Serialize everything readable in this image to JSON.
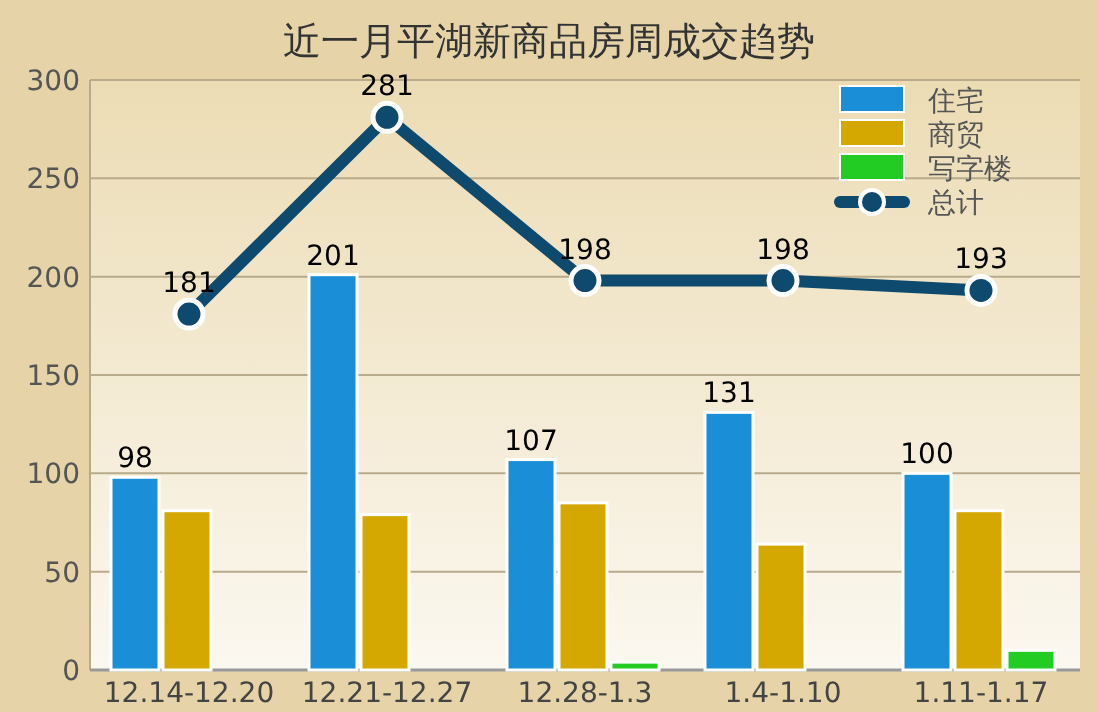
{
  "chart_data": {
    "type": "bar",
    "title": "近一月平湖新商品房周成交趋势",
    "categories": [
      "12.14-12.20",
      "12.21-12.27",
      "12.28-1.3",
      "1.4-1.10",
      "1.11-1.17"
    ],
    "series": [
      {
        "name": "住宅",
        "color": "#1a8fd8",
        "values": [
          98,
          201,
          107,
          131,
          100
        ],
        "value_labels": [
          "98",
          "201",
          "107",
          "131",
          "100"
        ]
      },
      {
        "name": "商贸",
        "color": "#d4a800",
        "values": [
          81,
          79,
          85,
          64,
          81
        ]
      },
      {
        "name": "写字楼",
        "color": "#22cc22",
        "values": [
          0,
          0,
          4,
          0,
          10
        ]
      },
      {
        "name": "总计",
        "type": "line",
        "color": "#0d4a6e",
        "marker": "circle",
        "values": [
          181,
          281,
          198,
          198,
          193
        ],
        "value_labels": [
          "181",
          "281",
          "198",
          "198",
          "193"
        ]
      }
    ],
    "ylim": [
      0,
      300
    ],
    "yticks": [
      0,
      50,
      100,
      150,
      200,
      250,
      300
    ],
    "grid": "y",
    "legend": "top right"
  }
}
